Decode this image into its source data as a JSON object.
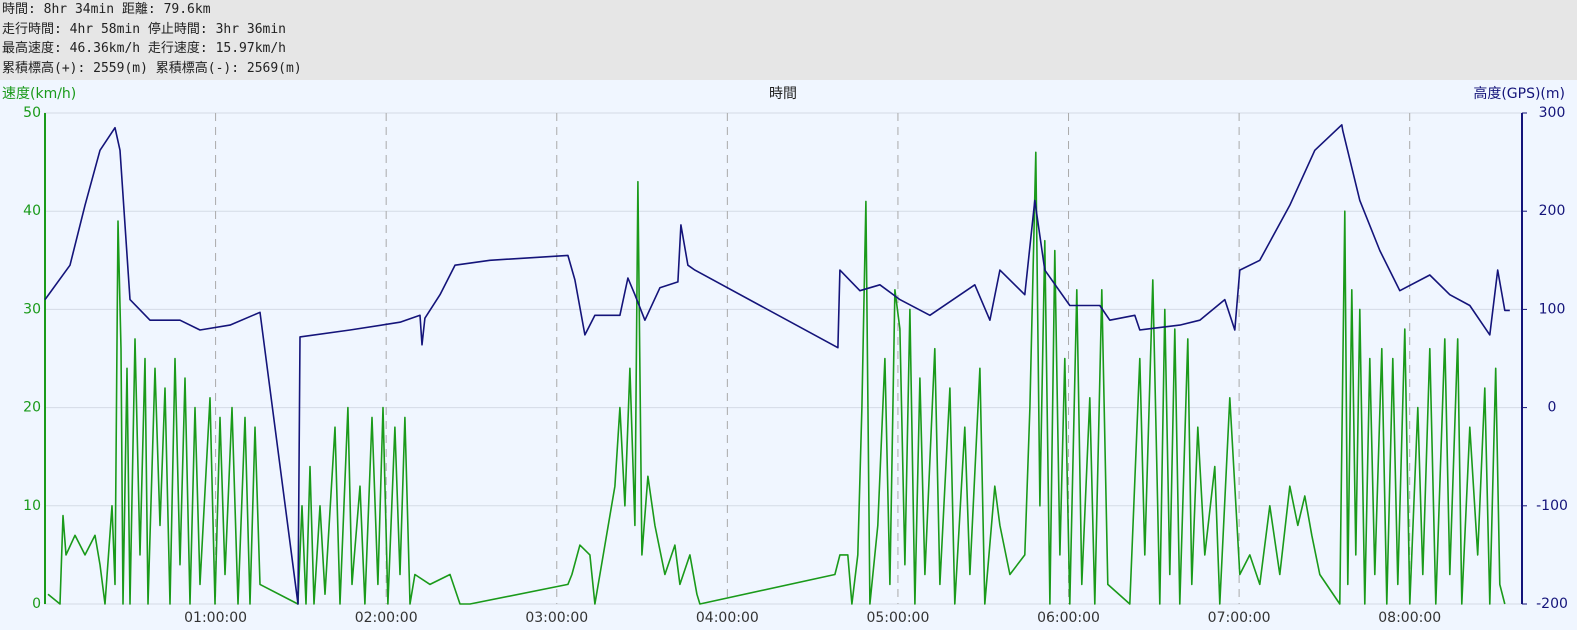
{
  "header": {
    "lines": [
      "時間: 8hr 34min 距離: 79.6km",
      "走行時間: 4hr 58min 停止時間: 3hr 36min",
      "最高速度: 46.36km/h 走行速度: 15.97km/h",
      "累積標高(+): 2559(m) 累積標高(-): 2569(m)"
    ]
  },
  "chart_data": {
    "type": "line",
    "xlabel": "時間",
    "ylabel": "速度(km/h)",
    "y2label": "高度(GPS)(m)",
    "xlim": [
      0,
      31170
    ],
    "ylim": [
      0,
      50
    ],
    "y2lim": [
      -200,
      300
    ],
    "xticks": [
      {
        "value": 3600,
        "label": "01:00:00"
      },
      {
        "value": 7200,
        "label": "02:00:00"
      },
      {
        "value": 10800,
        "label": "03:00:00"
      },
      {
        "value": 14400,
        "label": "04:00:00"
      },
      {
        "value": 18000,
        "label": "05:00:00"
      },
      {
        "value": 21600,
        "label": "06:00:00"
      },
      {
        "value": 25200,
        "label": "07:00:00"
      },
      {
        "value": 28800,
        "label": "08:00:00"
      }
    ],
    "yticks": [
      0,
      10,
      20,
      30,
      40,
      50
    ],
    "y2ticks": [
      -200,
      -100,
      0,
      100,
      200,
      300
    ],
    "grid": true,
    "series": [
      {
        "color": "#1a9a1a",
        "axis": "y",
        "x": [
          63,
          317,
          380,
          443,
          633,
          844,
          1055,
          1160,
          1266,
          1414,
          1477,
          1540,
          1604,
          1646,
          1730,
          1794,
          1899,
          2005,
          2110,
          2173,
          2321,
          2427,
          2532,
          2638,
          2743,
          2849,
          2954,
          3060,
          3165,
          3271,
          3482,
          3587,
          3693,
          3798,
          3946,
          4072,
          4220,
          4326,
          4431,
          4537,
          5338,
          5423,
          5507,
          5592,
          5676,
          5803,
          5908,
          6119,
          6225,
          6393,
          6478,
          6647,
          6752,
          6900,
          7026,
          7132,
          7237,
          7385,
          7491,
          7596,
          7702,
          7807,
          8124,
          8546,
          8757,
          8968,
          11035,
          11120,
          11289,
          11500,
          11605,
          12027,
          12133,
          12238,
          12344,
          12449,
          12512,
          12597,
          12723,
          12871,
          13082,
          13293,
          13399,
          13610,
          13757,
          13820,
          16669,
          16775,
          16943,
          17028,
          17154,
          17239,
          17323,
          17408,
          17576,
          17724,
          17830,
          17935,
          18041,
          18146,
          18252,
          18357,
          18463,
          18568,
          18779,
          18885,
          19096,
          19201,
          19412,
          19518,
          19729,
          19834,
          20045,
          20151,
          20362,
          20678,
          20784,
          20910,
          20995,
          21100,
          21206,
          21311,
          21417,
          21522,
          21628,
          21775,
          21881,
          22050,
          22155,
          22303,
          22429,
          22894,
          23105,
          23210,
          23379,
          23527,
          23632,
          23738,
          23843,
          23949,
          24117,
          24202,
          24328,
          24476,
          24687,
          24793,
          25004,
          25215,
          25426,
          25637,
          25848,
          26059,
          26270,
          26438,
          26586,
          26734,
          26903,
          27325,
          27430,
          27493,
          27578,
          27662,
          27747,
          27852,
          27958,
          28063,
          28211,
          28316,
          28443,
          28549,
          28696,
          28802,
          28970,
          29076,
          29224,
          29350,
          29540,
          29646,
          29814,
          29899,
          30068,
          30236,
          30384,
          30490,
          30616,
          30701,
          30807
        ],
        "values": [
          1,
          0,
          9,
          5,
          7,
          5,
          7,
          4,
          0,
          10,
          2,
          39,
          26,
          0,
          24,
          0,
          27,
          5,
          25,
          0,
          24,
          8,
          22,
          0,
          25,
          4,
          23,
          0,
          20,
          2,
          21,
          0,
          19,
          3,
          20,
          0,
          19,
          0,
          18,
          2,
          0,
          10,
          0,
          14,
          0,
          10,
          1,
          18,
          0,
          20,
          2,
          12,
          0,
          19,
          2,
          20,
          0,
          18,
          3,
          19,
          0,
          3,
          2,
          3,
          0,
          0,
          2,
          3,
          6,
          5,
          0,
          12,
          20,
          10,
          24,
          8,
          43,
          5,
          13,
          8,
          3,
          6,
          2,
          5,
          1,
          0,
          3,
          5,
          5,
          0,
          5,
          20,
          41,
          0,
          8,
          25,
          2,
          32,
          28,
          4,
          30,
          0,
          23,
          3,
          26,
          2,
          22,
          0,
          18,
          3,
          24,
          0,
          12,
          8,
          3,
          5,
          20,
          46,
          10,
          37,
          0,
          36,
          5,
          25,
          0,
          32,
          2,
          21,
          0,
          32,
          2,
          0,
          25,
          5,
          33,
          0,
          30,
          3,
          28,
          0,
          27,
          2,
          18,
          5,
          14,
          0,
          21,
          3,
          5,
          2,
          10,
          3,
          12,
          8,
          11,
          7,
          3,
          0,
          40,
          2,
          32,
          5,
          30,
          0,
          25,
          3,
          26,
          0,
          25,
          2,
          28,
          0,
          20,
          3,
          26,
          0,
          27,
          3,
          27,
          0,
          18,
          5,
          22,
          0,
          24,
          2,
          0
        ]
      },
      {
        "color": "#14147a",
        "axis": "y2",
        "x": [
          0,
          528,
          844,
          1160,
          1477,
          1583,
          1794,
          2216,
          2849,
          3271,
          3904,
          4537,
          5339,
          5381,
          6436,
          7492,
          7913,
          7955,
          8018,
          8335,
          8652,
          9390,
          11036,
          11183,
          11394,
          11605,
          12133,
          12301,
          12449,
          12660,
          12977,
          13356,
          13420,
          13568,
          13715,
          16732,
          16775,
          17197,
          17619,
          18041,
          18674,
          19623,
          19940,
          20151,
          20678,
          20889,
          21100,
          21628,
          22261,
          22472,
          22999,
          23105,
          23949,
          24371,
          24898,
          25109,
          25215,
          25637,
          26270,
          26797,
          27367,
          27388,
          27747,
          28169,
          28591,
          29224,
          29646,
          30068,
          30490,
          30658,
          30806,
          30912
        ],
        "values": [
          110,
          145,
          206,
          262,
          285,
          262,
          110,
          89,
          89,
          79,
          84,
          97,
          -200,
          72,
          79,
          87,
          94,
          64,
          91,
          115,
          145,
          150,
          155,
          130,
          74,
          94,
          94,
          132,
          115,
          89,
          122,
          128,
          186,
          145,
          140,
          61,
          140,
          119,
          125,
          110,
          94,
          125,
          89,
          140,
          115,
          211,
          140,
          104,
          104,
          89,
          94,
          79,
          84,
          89,
          110,
          79,
          140,
          150,
          206,
          262,
          288,
          282,
          211,
          160,
          119,
          135,
          115,
          104,
          74,
          140,
          99,
          99
        ]
      }
    ]
  }
}
